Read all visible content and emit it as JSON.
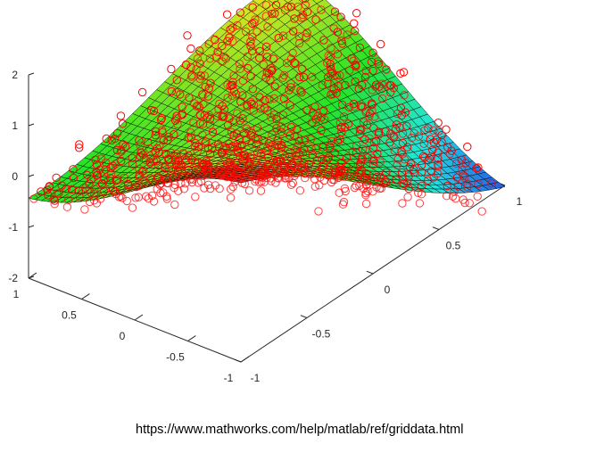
{
  "chart_data": {
    "type": "3d-surface-scatter",
    "title": "",
    "xlabel": "",
    "ylabel": "",
    "zlabel": "",
    "xlim": [
      -1,
      1
    ],
    "ylim": [
      -1,
      1
    ],
    "zlim": [
      -2,
      2
    ],
    "x_ticks": [
      "-1",
      "-0.5",
      "0",
      "0.5",
      "1"
    ],
    "y_ticks": [
      "-1",
      "-0.5",
      "0",
      "0.5",
      "1"
    ],
    "z_ticks": [
      "-2",
      "-1",
      "0",
      "1",
      "2"
    ],
    "surface": {
      "function": "x*exp(-x^2-y^2) style interpolated surface",
      "x_range": [
        -1,
        1
      ],
      "y_range": [
        -1,
        1
      ],
      "grid_size": 33,
      "mesh_color": "#000000",
      "colormap": "hsv"
    },
    "scatter": {
      "marker": "o",
      "color": "#ff0000",
      "count": 900
    }
  },
  "source_url": "https://www.mathworks.com/help/matlab/ref/griddata.html"
}
